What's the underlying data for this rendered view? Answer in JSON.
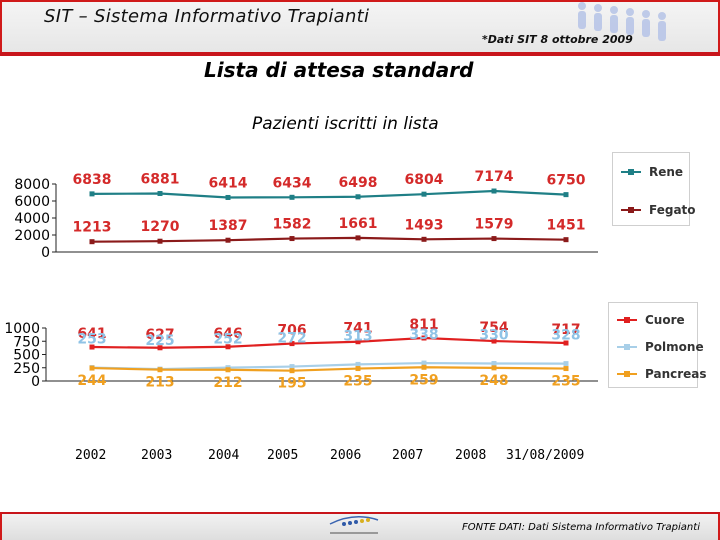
{
  "header": {
    "app_title": "SIT – Sistema Informativo Trapianti",
    "date_note": "*Dati SIT 8 ottobre 2009"
  },
  "page_title": "Lista di attesa standard",
  "chart_title": "Pazienti iscritti in lista",
  "footer": {
    "source": "FONTE DATI: Dati Sistema Informativo Trapianti"
  },
  "colors": {
    "header_red": "#c8151b",
    "rene": "#1f7f86",
    "fegato": "#8b1a1a",
    "cuore": "#e02020",
    "polmone": "#a8cfe8",
    "pancreas": "#f0a020",
    "label_red": "#d42a2a",
    "label_blue": "#8fc3e6",
    "label_orange": "#f0a020"
  },
  "chart_data": [
    {
      "type": "line",
      "x": [
        "2002",
        "2003",
        "2004",
        "2005",
        "2006",
        "2007",
        "2008",
        "31/08/2009"
      ],
      "yticks": [
        "8000",
        "6000",
        "4000",
        "2000",
        "0"
      ],
      "ylim": [
        0,
        8000
      ],
      "series": [
        {
          "name": "Rene",
          "values": [
            6838,
            6881,
            6414,
            6434,
            6498,
            6804,
            7174,
            6750
          ]
        },
        {
          "name": "Fegato",
          "values": [
            1213,
            1270,
            1387,
            1582,
            1661,
            1493,
            1579,
            1451
          ]
        }
      ],
      "legend": "right",
      "grid": false
    },
    {
      "type": "line",
      "x": [
        "2002",
        "2003",
        "2004",
        "2005",
        "2006",
        "2007",
        "2008",
        "31/08/2009"
      ],
      "yticks": [
        "1000",
        "750",
        "500",
        "250",
        "0"
      ],
      "ylim": [
        0,
        1000
      ],
      "series": [
        {
          "name": "Cuore",
          "values": [
            641,
            627,
            646,
            706,
            741,
            811,
            754,
            717
          ]
        },
        {
          "name": "Polmone",
          "values": [
            253,
            225,
            252,
            272,
            313,
            338,
            330,
            328
          ]
        },
        {
          "name": "Pancreas",
          "values": [
            244,
            213,
            212,
            195,
            235,
            259,
            248,
            235
          ]
        }
      ],
      "legend": "right",
      "grid": false
    }
  ]
}
